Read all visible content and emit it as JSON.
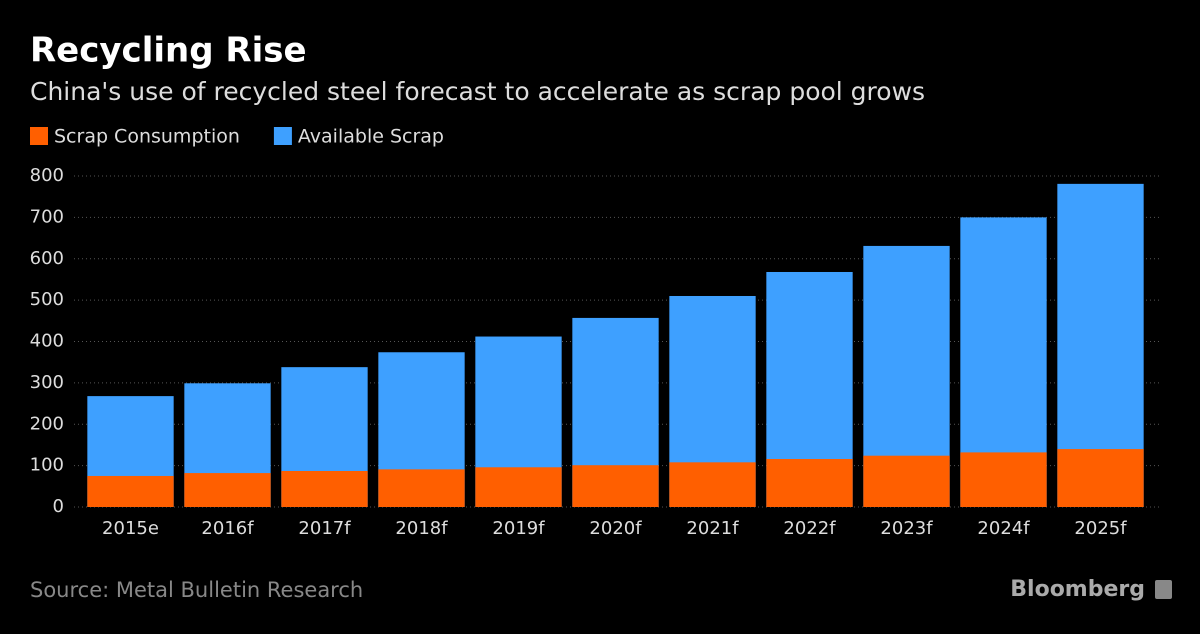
{
  "chart_data": {
    "type": "bar",
    "title": "Recycling Rise",
    "subtitle": "China's use of recycled steel forecast to accelerate as scrap pool grows",
    "source": "Source: Metal Bulletin Research",
    "brand": "Bloomberg",
    "categories": [
      "2015e",
      "2016f",
      "2017f",
      "2018f",
      "2019f",
      "2020f",
      "2021f",
      "2022f",
      "2023f",
      "2024f",
      "2025f"
    ],
    "series": [
      {
        "name": "Available Scrap",
        "color": "#3ea0ff",
        "values": [
          268,
          299,
          338,
          374,
          412,
          457,
          510,
          568,
          631,
          700,
          781
        ]
      },
      {
        "name": "Scrap Consumption",
        "color": "#ff5f00",
        "values": [
          75,
          82,
          87,
          91,
          96,
          101,
          108,
          116,
          124,
          132,
          140
        ]
      }
    ],
    "ylim": [
      0,
      800
    ],
    "yticks": [
      0,
      100,
      200,
      300,
      400,
      500,
      600,
      700,
      800
    ],
    "grid": true
  }
}
